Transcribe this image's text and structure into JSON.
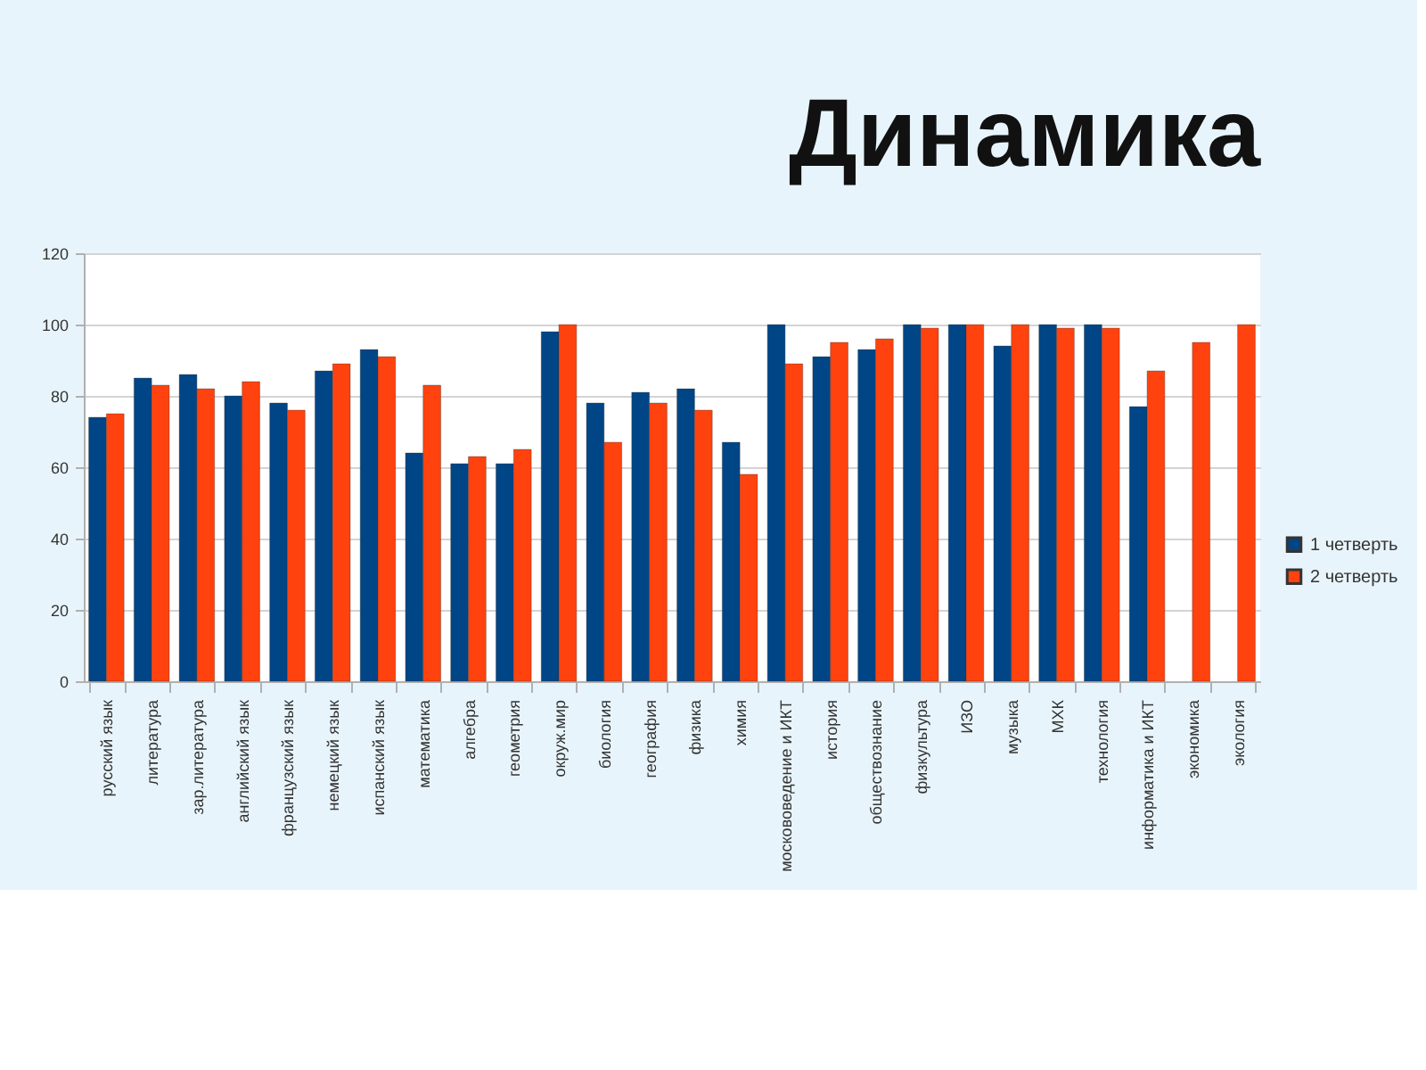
{
  "chart_data": {
    "type": "bar",
    "title": "Динамика",
    "categories": [
      "русский язык",
      "литература",
      "зар.литература",
      "английский язык",
      "французский язык",
      "немецкий язык",
      "испанский язык",
      "математика",
      "алгебра",
      "геометрия",
      "окруж.мир",
      "биология",
      "география",
      "физика",
      "химия",
      "москововедение и ИКТ",
      "история",
      "обществознание",
      "физкультура",
      "ИЗО",
      "музыка",
      "МХК",
      "технология",
      "информатика и ИКТ",
      "экономика",
      "экология"
    ],
    "series": [
      {
        "name": "1 четверть",
        "color": "#004586",
        "values": [
          74,
          85,
          86,
          80,
          78,
          87,
          93,
          64,
          61,
          61,
          98,
          78,
          81,
          82,
          67,
          100,
          91,
          93,
          100,
          100,
          94,
          100,
          100,
          77,
          null,
          null
        ]
      },
      {
        "name": "2 четверть",
        "color": "#ff420e",
        "values": [
          75,
          83,
          82,
          84,
          76,
          89,
          91,
          83,
          63,
          65,
          100,
          67,
          78,
          76,
          58,
          89,
          95,
          96,
          99,
          100,
          100,
          99,
          99,
          87,
          95,
          100
        ]
      }
    ],
    "ylim": [
      0,
      120
    ],
    "yticks": [
      0,
      20,
      40,
      60,
      80,
      100,
      120
    ],
    "grid": "y",
    "legend": "right"
  }
}
